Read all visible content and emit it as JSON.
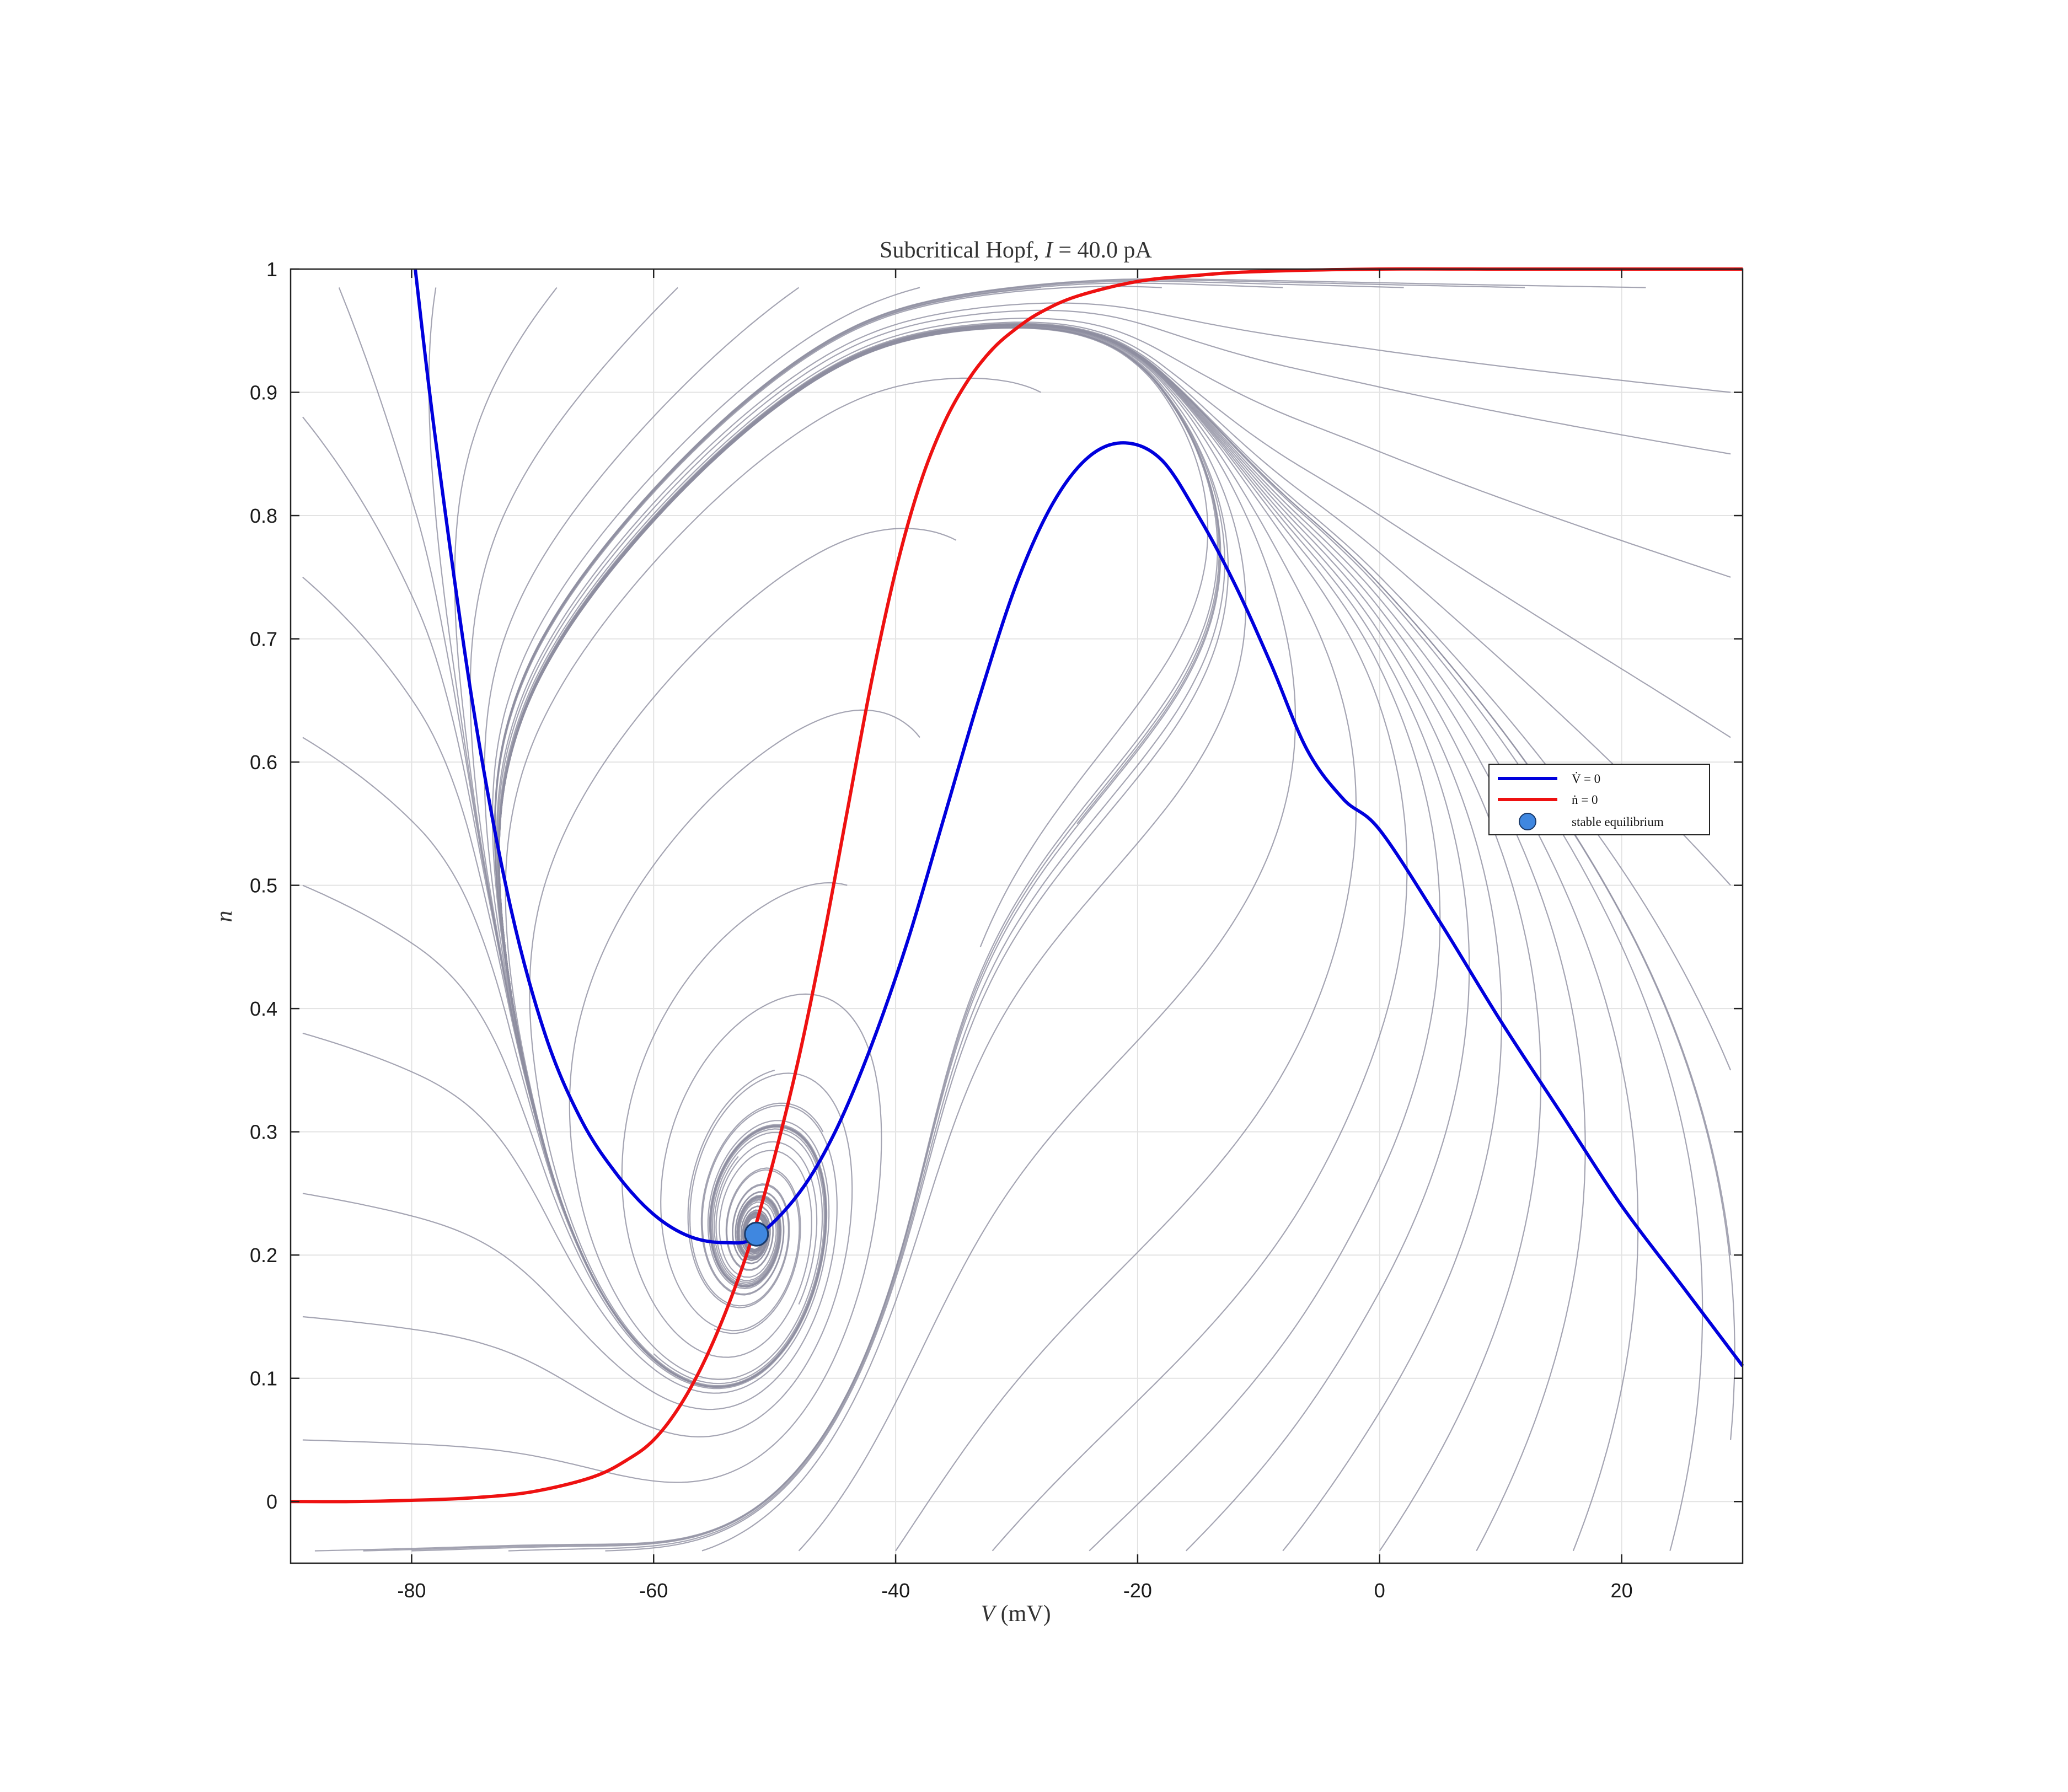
{
  "chart_data": {
    "type": "line",
    "title": {
      "prefix": "Subcritical Hopf, ",
      "var": "I",
      "suffix": " = 40.0 pA"
    },
    "xlabel": {
      "var": "V",
      "unit": " (mV)"
    },
    "ylabel": "n",
    "xlim": [
      -90,
      30
    ],
    "ylim": [
      -0.05,
      1.0
    ],
    "x_ticks": [
      -80,
      -60,
      -40,
      -20,
      0,
      20
    ],
    "x_tick_labels": [
      "-80",
      "-60",
      "-40",
      "-20",
      "0",
      "20"
    ],
    "y_ticks": [
      0,
      0.1,
      0.2,
      0.3,
      0.4,
      0.5,
      0.6,
      0.7,
      0.8,
      0.9,
      1
    ],
    "y_tick_labels": [
      "0",
      "0.1",
      "0.2",
      "0.3",
      "0.4",
      "0.5",
      "0.6",
      "0.7",
      "0.8",
      "0.9",
      "1"
    ],
    "grid": true,
    "legend": {
      "position": "right",
      "entries": [
        {
          "label": "V̇ = 0",
          "color": "#0000dd",
          "kind": "line"
        },
        {
          "label": "ṅ = 0",
          "color": "#ee1111",
          "kind": "line"
        },
        {
          "label": "stable equilibrium",
          "color": "#3f87e0",
          "kind": "marker"
        }
      ]
    },
    "series": [
      {
        "name": "V̇ = 0",
        "color": "#0000dd",
        "x": [
          -79.7,
          -78,
          -75,
          -72,
          -69,
          -66,
          -63,
          -60,
          -57,
          -54,
          -51.5,
          -48,
          -45,
          -42,
          -39,
          -36,
          -33,
          -30,
          -27,
          -24,
          -21,
          -18,
          -15,
          -12,
          -9,
          -6,
          -3,
          0,
          5,
          10,
          15,
          20,
          25,
          30
        ],
        "y": [
          1.0,
          0.86,
          0.65,
          0.49,
          0.38,
          0.31,
          0.265,
          0.233,
          0.215,
          0.21,
          0.215,
          0.25,
          0.3,
          0.37,
          0.455,
          0.555,
          0.655,
          0.745,
          0.81,
          0.848,
          0.859,
          0.845,
          0.8,
          0.745,
          0.68,
          0.61,
          0.57,
          0.545,
          0.47,
          0.39,
          0.315,
          0.24,
          0.175,
          0.11
        ]
      },
      {
        "name": "ṅ = 0",
        "color": "#ee1111",
        "x": [
          -90,
          -85,
          -80,
          -75,
          -70,
          -65,
          -62,
          -60,
          -58,
          -56,
          -54,
          -52,
          -50,
          -48,
          -46,
          -44,
          -42,
          -40,
          -38,
          -36,
          -34,
          -32,
          -30,
          -28,
          -25,
          -20,
          -15,
          -10,
          0,
          10,
          20,
          30
        ],
        "y": [
          0,
          0,
          0.001,
          0.003,
          0.008,
          0.02,
          0.035,
          0.05,
          0.075,
          0.11,
          0.155,
          0.21,
          0.28,
          0.36,
          0.455,
          0.56,
          0.665,
          0.755,
          0.825,
          0.875,
          0.91,
          0.935,
          0.952,
          0.965,
          0.978,
          0.99,
          0.995,
          0.998,
          1,
          1,
          1,
          1
        ]
      }
    ],
    "equilibrium": {
      "label": "stable equilibrium",
      "V": -51.5,
      "n": 0.217
    },
    "trajectory_color": "#8f8fa0"
  }
}
